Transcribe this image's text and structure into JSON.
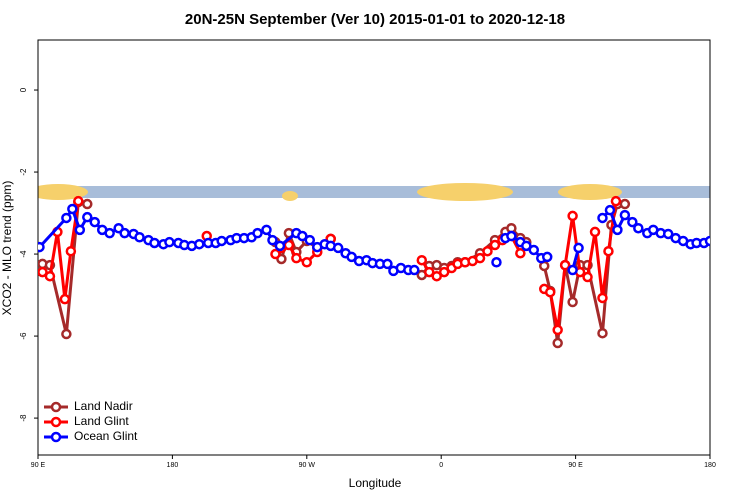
{
  "chart_data": {
    "type": "line",
    "title": "20N-25N September (Ver 10)   2015-01-01 to 2020-12-18",
    "xlabel": "Longitude",
    "ylabel": "XCO2 - MLO trend (ppm)",
    "xlim": [
      90,
      540
    ],
    "xticks": [
      {
        "value": 90,
        "label": "90 E"
      },
      180,
      {
        "value": 270,
        "label": "90 W"
      },
      {
        "value": 360,
        "label": "0"
      },
      {
        "value": 450,
        "label": "90 E"
      },
      {
        "value": 540,
        "label": "180"
      }
    ],
    "ylim": [
      -8.9,
      1.22
    ],
    "yticks": [
      0,
      -2,
      -4,
      -6,
      -8
    ],
    "legend": "bottom-left",
    "series": [
      {
        "name": "Land Nadir",
        "color": "#a52a2a",
        "x": [
          93,
          98,
          109,
          117,
          123,
          null,
          249,
          253,
          258,
          263,
          270,
          277,
          286,
          null,
          347,
          352,
          357,
          362,
          367,
          371,
          376,
          386,
          396,
          403,
          407,
          413,
          417,
          null,
          429,
          433,
          438,
          443,
          448,
          453,
          458,
          468,
          474,
          478,
          483
        ],
        "values": [
          -4.24,
          -4.27,
          -5.95,
          -2.73,
          -2.78,
          null,
          -3.71,
          -4.12,
          -3.49,
          -3.95,
          -3.68,
          -3.85,
          -3.63,
          null,
          -4.51,
          -4.29,
          -4.27,
          -4.34,
          -4.29,
          -4.2,
          -4.2,
          -3.98,
          -3.66,
          -3.46,
          -3.37,
          -3.61,
          -3.71,
          null,
          -4.29,
          -4.9,
          -6.17,
          -4.27,
          -5.17,
          -4.27,
          -4.27,
          -5.93,
          -3.29,
          -2.78,
          -2.78
        ]
      },
      {
        "name": "Land Glint",
        "color": "#ff0000",
        "x": [
          93,
          98,
          103,
          108,
          112,
          117,
          null,
          203,
          null,
          249,
          253,
          258,
          263,
          270,
          277,
          286,
          null,
          347,
          352,
          357,
          362,
          367,
          371,
          376,
          381,
          386,
          391,
          396,
          401,
          407,
          413,
          null,
          429,
          433,
          438,
          443,
          448,
          453,
          458,
          463,
          468,
          472,
          477
        ],
        "values": [
          -4.44,
          -4.54,
          -3.46,
          -5.1,
          -3.93,
          -2.71,
          null,
          -3.56,
          null,
          -4.0,
          -3.85,
          -3.78,
          -4.1,
          -4.2,
          -3.95,
          -3.63,
          null,
          -4.15,
          -4.44,
          -4.54,
          -4.44,
          -4.34,
          -4.24,
          -4.2,
          -4.17,
          -4.1,
          -3.93,
          -3.78,
          -3.66,
          -3.56,
          -3.98,
          null,
          -4.85,
          -4.93,
          -5.85,
          -4.27,
          -3.07,
          -4.44,
          -4.56,
          -3.46,
          -5.07,
          -3.93,
          -2.71
        ]
      },
      {
        "name": "Ocean Glint",
        "color": "#0000ff",
        "x": [
          91,
          109,
          113,
          118,
          123,
          128,
          133,
          138,
          144,
          148,
          154,
          158,
          164,
          168,
          174,
          178,
          184,
          188,
          193,
          198,
          204,
          209,
          213,
          219,
          223,
          228,
          233,
          237,
          243,
          247,
          252,
          263,
          267,
          272,
          277,
          282,
          286,
          291,
          296,
          300,
          305,
          310,
          314,
          319,
          324,
          328,
          333,
          338,
          342,
          null,
          397,
          null,
          403,
          407,
          413,
          417,
          422,
          427,
          431,
          null,
          448,
          452,
          null,
          468,
          473,
          478,
          483,
          488,
          492,
          498,
          502,
          507,
          512,
          517,
          522,
          527,
          531,
          536,
          540
        ],
        "values": [
          -3.83,
          -3.12,
          -2.9,
          -3.41,
          -3.1,
          -3.22,
          -3.41,
          -3.49,
          -3.37,
          -3.49,
          -3.51,
          -3.59,
          -3.66,
          -3.73,
          -3.76,
          -3.71,
          -3.73,
          -3.78,
          -3.8,
          -3.76,
          -3.73,
          -3.73,
          -3.68,
          -3.66,
          -3.61,
          -3.61,
          -3.59,
          -3.49,
          -3.41,
          -3.66,
          -3.8,
          -3.49,
          -3.56,
          -3.66,
          -3.83,
          -3.76,
          -3.8,
          -3.85,
          -3.98,
          -4.07,
          -4.17,
          -4.15,
          -4.22,
          -4.24,
          -4.24,
          -4.41,
          -4.34,
          -4.39,
          -4.39,
          null,
          -4.2,
          null,
          -3.61,
          -3.56,
          -3.71,
          -3.8,
          -3.9,
          -4.1,
          -4.07,
          null,
          -4.39,
          -3.85,
          null,
          -3.12,
          -2.93,
          -3.41,
          -3.05,
          -3.22,
          -3.37,
          -3.49,
          -3.41,
          -3.49,
          -3.51,
          -3.61,
          -3.68,
          -3.76,
          -3.73,
          -3.73,
          -3.68
        ]
      }
    ]
  }
}
